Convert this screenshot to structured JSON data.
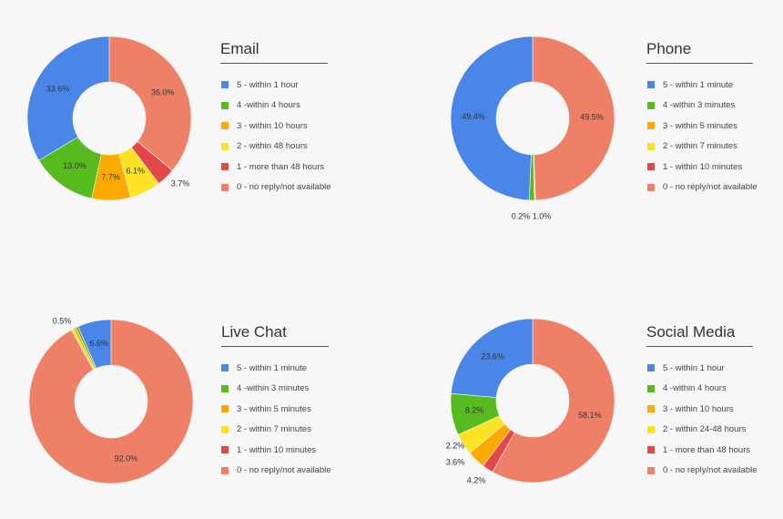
{
  "colors": {
    "c5": "#4A86E8",
    "c4": "#57BB1F",
    "c3": "#FBAA00",
    "c2": "#FBE324",
    "c1": "#E2474B",
    "c0": "#EF8068"
  },
  "chart_data": [
    {
      "type": "pie",
      "title": "Email",
      "legend": [
        "5 - within 1 hour",
        "4 -within 4 hours",
        "3 - within 10 hours",
        "2 - within 48 hours",
        "1 - more than 48 hours",
        "0 - no reply/not available"
      ],
      "slices": [
        {
          "name": "0 - no reply/not available",
          "value": 36.0,
          "label": "36.0%",
          "color": "#EF8068"
        },
        {
          "name": "1 - more than 48 hours",
          "value": 3.7,
          "label": "3.7%",
          "color": "#E2474B"
        },
        {
          "name": "2 - within 48 hours",
          "value": 6.1,
          "label": "6.1%",
          "color": "#FBE324"
        },
        {
          "name": "3 - within 10 hours",
          "value": 7.7,
          "label": "7.7%",
          "color": "#FBAA00"
        },
        {
          "name": "4 -within 4 hours",
          "value": 13.0,
          "label": "13.0%",
          "color": "#57BB1F"
        },
        {
          "name": "5 - within 1 hour",
          "value": 33.6,
          "label": "33.6%",
          "color": "#4A86E8"
        }
      ]
    },
    {
      "type": "pie",
      "title": "Phone",
      "legend": [
        "5 - within 1 minute",
        "4 -within 3 minutes",
        "3 - within 5 minutes",
        "2 - within 7 minutes",
        "1 - within 10 minutes",
        "0 - no reply/not available"
      ],
      "slices": [
        {
          "name": "0 - no reply/not available",
          "value": 49.5,
          "label": "49.5%",
          "color": "#EF8068"
        },
        {
          "name": "2 - within 7 minutes",
          "value": 0.2,
          "label": "0.2%",
          "color": "#FBE324"
        },
        {
          "name": "4 -within 3 minutes",
          "value": 1.0,
          "label": "1.0%",
          "color": "#57BB1F"
        },
        {
          "name": "5 - within 1 minute",
          "value": 49.4,
          "label": "49.4%",
          "color": "#4A86E8"
        }
      ]
    },
    {
      "type": "pie",
      "title": "Live Chat",
      "legend": [
        "5 - within 1 minute",
        "4 -within 3 minutes",
        "3 - within 5 minutes",
        "2 - within 7 minutes",
        "1 - within 10 minutes",
        "0 - no reply/not available"
      ],
      "slices": [
        {
          "name": "0 - no reply/not available",
          "value": 92.0,
          "label": "92.0%",
          "color": "#EF8068"
        },
        {
          "name": "2 - within 7 minutes",
          "value": 0.5,
          "label": "0.5%",
          "color": "#FBE324"
        },
        {
          "name": "3 - within 5 minutes",
          "value": 0.5,
          "label": "",
          "color": "#FBAA00"
        },
        {
          "name": "4 -within 3 minutes",
          "value": 0.5,
          "label": "",
          "color": "#57BB1F"
        },
        {
          "name": "5 - within 1 minute",
          "value": 6.6,
          "label": "6.6%",
          "color": "#4A86E8"
        }
      ]
    },
    {
      "type": "pie",
      "title": "Social Media",
      "legend": [
        "5 - within 1 hour",
        "4 -within 4 hours",
        "3 - within 10 hours",
        "2 - within 24-48 hours",
        "1 - more than 48 hours",
        "0 - no reply/not available"
      ],
      "slices": [
        {
          "name": "0 - no reply/not available",
          "value": 58.1,
          "label": "58.1%",
          "color": "#EF8068"
        },
        {
          "name": "1 - more than 48 hours",
          "value": 2.2,
          "label": "2.2%",
          "color": "#E2474B"
        },
        {
          "name": "3 - within 10 hours",
          "value": 3.6,
          "label": "3.6%",
          "color": "#FBAA00"
        },
        {
          "name": "2 - within 24-48 hours",
          "value": 4.2,
          "label": "4.2%",
          "color": "#FBE324"
        },
        {
          "name": "4 -within 4 hours",
          "value": 8.2,
          "label": "8.2%",
          "color": "#57BB1F"
        },
        {
          "name": "5 - within 1 hour",
          "value": 23.6,
          "label": "23.6%",
          "color": "#4A86E8"
        }
      ]
    }
  ]
}
